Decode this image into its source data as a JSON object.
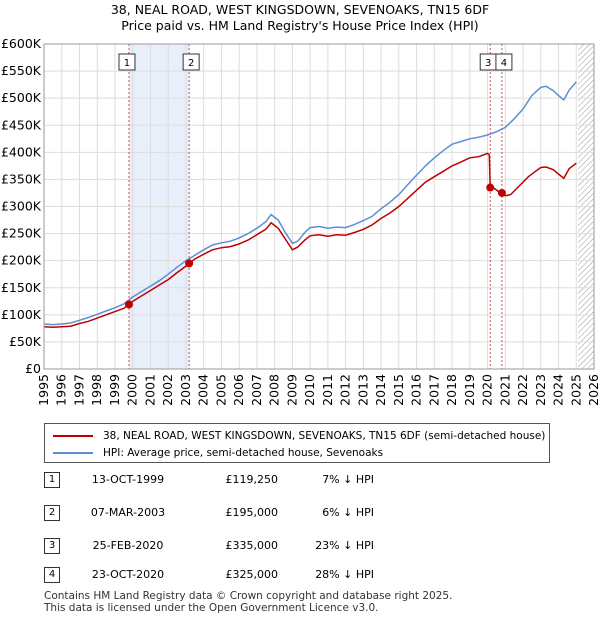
{
  "title_line1": "38, NEAL ROAD, WEST KINGSDOWN, SEVENOAKS, TN15 6DF",
  "title_line2": "Price paid vs. HM Land Registry's House Price Index (HPI)",
  "chart_data": {
    "type": "line",
    "ylim": [
      0,
      600000
    ],
    "xlim": [
      1995,
      2026
    ],
    "y_ticks": [
      0,
      50000,
      100000,
      150000,
      200000,
      250000,
      300000,
      350000,
      400000,
      450000,
      500000,
      550000,
      600000
    ],
    "y_tick_labels": [
      "£0",
      "£50K",
      "£100K",
      "£150K",
      "£200K",
      "£250K",
      "£300K",
      "£350K",
      "£400K",
      "£450K",
      "£500K",
      "£550K",
      "£600K"
    ],
    "x_ticks": [
      1995,
      1996,
      1997,
      1998,
      1999,
      2000,
      2001,
      2002,
      2003,
      2004,
      2005,
      2006,
      2007,
      2008,
      2009,
      2010,
      2011,
      2012,
      2013,
      2014,
      2015,
      2016,
      2017,
      2018,
      2019,
      2020,
      2021,
      2022,
      2023,
      2024,
      2025,
      2026
    ],
    "x_tick_labels": [
      "1995",
      "1996",
      "1997",
      "1998",
      "1999",
      "2000",
      "2001",
      "2002",
      "2003",
      "2004",
      "2005",
      "2006",
      "2007",
      "2008",
      "2009",
      "2010",
      "2011",
      "2012",
      "2013",
      "2014",
      "2015",
      "2016",
      "2017",
      "2018",
      "2019",
      "2020",
      "2021",
      "2022",
      "2023",
      "2024",
      "2025",
      "2026"
    ],
    "grid": true,
    "shaded_period": [
      1999.79,
      2003.18
    ],
    "future_hatch_from": 2025.1,
    "series": [
      {
        "name": "38, NEAL ROAD, WEST KINGSDOWN, SEVENOAKS, TN15 6DF (semi-detached house)",
        "color": "#c00000",
        "points": [
          [
            1995.0,
            78000
          ],
          [
            1995.5,
            77000
          ],
          [
            1996.0,
            78000
          ],
          [
            1996.5,
            79000
          ],
          [
            1997.0,
            84000
          ],
          [
            1997.5,
            88000
          ],
          [
            1998.0,
            94000
          ],
          [
            1998.5,
            100000
          ],
          [
            1999.0,
            106000
          ],
          [
            1999.5,
            112000
          ],
          [
            1999.79,
            119250
          ],
          [
            2000.0,
            125000
          ],
          [
            2000.5,
            135000
          ],
          [
            2001.0,
            145000
          ],
          [
            2001.5,
            155000
          ],
          [
            2002.0,
            165000
          ],
          [
            2002.5,
            178000
          ],
          [
            2003.0,
            190000
          ],
          [
            2003.18,
            195000
          ],
          [
            2003.5,
            203000
          ],
          [
            2004.0,
            212000
          ],
          [
            2004.5,
            220000
          ],
          [
            2005.0,
            224000
          ],
          [
            2005.5,
            226000
          ],
          [
            2006.0,
            231000
          ],
          [
            2006.5,
            238000
          ],
          [
            2007.0,
            248000
          ],
          [
            2007.5,
            258000
          ],
          [
            2007.8,
            270000
          ],
          [
            2008.2,
            260000
          ],
          [
            2008.6,
            240000
          ],
          [
            2009.0,
            220000
          ],
          [
            2009.3,
            225000
          ],
          [
            2009.7,
            238000
          ],
          [
            2010.0,
            246000
          ],
          [
            2010.5,
            248000
          ],
          [
            2011.0,
            245000
          ],
          [
            2011.5,
            248000
          ],
          [
            2012.0,
            247000
          ],
          [
            2012.5,
            252000
          ],
          [
            2013.0,
            258000
          ],
          [
            2013.5,
            266000
          ],
          [
            2014.0,
            278000
          ],
          [
            2014.5,
            288000
          ],
          [
            2015.0,
            300000
          ],
          [
            2015.5,
            315000
          ],
          [
            2016.0,
            330000
          ],
          [
            2016.5,
            345000
          ],
          [
            2017.0,
            355000
          ],
          [
            2017.5,
            365000
          ],
          [
            2018.0,
            375000
          ],
          [
            2018.5,
            382000
          ],
          [
            2019.0,
            390000
          ],
          [
            2019.5,
            392000
          ],
          [
            2020.0,
            398000
          ],
          [
            2020.1,
            395000
          ],
          [
            2020.15,
            335000
          ],
          [
            2020.4,
            333000
          ],
          [
            2020.6,
            328000
          ],
          [
            2020.81,
            325000
          ],
          [
            2021.0,
            320000
          ],
          [
            2021.3,
            322000
          ],
          [
            2021.7,
            335000
          ],
          [
            2022.0,
            345000
          ],
          [
            2022.3,
            355000
          ],
          [
            2022.7,
            365000
          ],
          [
            2023.0,
            372000
          ],
          [
            2023.3,
            373000
          ],
          [
            2023.7,
            368000
          ],
          [
            2024.0,
            360000
          ],
          [
            2024.3,
            352000
          ],
          [
            2024.6,
            370000
          ],
          [
            2025.0,
            380000
          ]
        ]
      },
      {
        "name": "HPI: Average price, semi-detached house, Sevenoaks",
        "color": "#5b8fd4",
        "points": [
          [
            1995.0,
            83000
          ],
          [
            1995.5,
            82000
          ],
          [
            1996.0,
            83000
          ],
          [
            1996.5,
            85000
          ],
          [
            1997.0,
            90000
          ],
          [
            1997.5,
            95000
          ],
          [
            1998.0,
            101000
          ],
          [
            1998.5,
            107000
          ],
          [
            1999.0,
            113000
          ],
          [
            1999.5,
            120000
          ],
          [
            2000.0,
            133000
          ],
          [
            2000.5,
            143000
          ],
          [
            2001.0,
            153000
          ],
          [
            2001.5,
            163000
          ],
          [
            2002.0,
            175000
          ],
          [
            2002.5,
            188000
          ],
          [
            2003.0,
            200000
          ],
          [
            2003.5,
            210000
          ],
          [
            2004.0,
            220000
          ],
          [
            2004.5,
            229000
          ],
          [
            2005.0,
            233000
          ],
          [
            2005.5,
            236000
          ],
          [
            2006.0,
            242000
          ],
          [
            2006.5,
            250000
          ],
          [
            2007.0,
            260000
          ],
          [
            2007.5,
            272000
          ],
          [
            2007.8,
            285000
          ],
          [
            2008.2,
            275000
          ],
          [
            2008.6,
            252000
          ],
          [
            2009.0,
            232000
          ],
          [
            2009.3,
            236000
          ],
          [
            2009.7,
            252000
          ],
          [
            2010.0,
            261000
          ],
          [
            2010.5,
            263000
          ],
          [
            2011.0,
            260000
          ],
          [
            2011.5,
            262000
          ],
          [
            2012.0,
            261000
          ],
          [
            2012.5,
            267000
          ],
          [
            2013.0,
            274000
          ],
          [
            2013.5,
            282000
          ],
          [
            2014.0,
            296000
          ],
          [
            2014.5,
            308000
          ],
          [
            2015.0,
            322000
          ],
          [
            2015.5,
            340000
          ],
          [
            2016.0,
            358000
          ],
          [
            2016.5,
            375000
          ],
          [
            2017.0,
            390000
          ],
          [
            2017.5,
            403000
          ],
          [
            2018.0,
            415000
          ],
          [
            2018.5,
            420000
          ],
          [
            2019.0,
            425000
          ],
          [
            2019.5,
            428000
          ],
          [
            2020.0,
            432000
          ],
          [
            2020.5,
            438000
          ],
          [
            2021.0,
            446000
          ],
          [
            2021.5,
            462000
          ],
          [
            2022.0,
            480000
          ],
          [
            2022.5,
            505000
          ],
          [
            2023.0,
            520000
          ],
          [
            2023.3,
            522000
          ],
          [
            2023.7,
            514000
          ],
          [
            2024.0,
            505000
          ],
          [
            2024.3,
            497000
          ],
          [
            2024.6,
            515000
          ],
          [
            2025.0,
            530000
          ]
        ]
      }
    ],
    "transactions": [
      {
        "marker": "1",
        "x": 1999.79,
        "price": 119250
      },
      {
        "marker": "2",
        "x": 2003.18,
        "price": 195000
      },
      {
        "marker": "3",
        "x": 2020.15,
        "price": 335000
      },
      {
        "marker": "4",
        "x": 2020.81,
        "price": 325000
      }
    ]
  },
  "legend": {
    "property_label": "38, NEAL ROAD, WEST KINGSDOWN, SEVENOAKS, TN15 6DF (semi-detached house)",
    "hpi_label": "HPI: Average price, semi-detached house, Sevenoaks",
    "property_color": "#c00000",
    "hpi_color": "#5b8fd4"
  },
  "transactions_table": [
    {
      "num": "1",
      "date": "13-OCT-1999",
      "price": "£119,250",
      "hpi": "7% ↓ HPI"
    },
    {
      "num": "2",
      "date": "07-MAR-2003",
      "price": "£195,000",
      "hpi": "6% ↓ HPI"
    },
    {
      "num": "3",
      "date": "25-FEB-2020",
      "price": "£335,000",
      "hpi": "23% ↓ HPI"
    },
    {
      "num": "4",
      "date": "23-OCT-2020",
      "price": "£325,000",
      "hpi": "28% ↓ HPI"
    }
  ],
  "footer": {
    "line1": "Contains HM Land Registry data © Crown copyright and database right 2025.",
    "line2": "This data is licensed under the Open Government Licence v3.0."
  }
}
